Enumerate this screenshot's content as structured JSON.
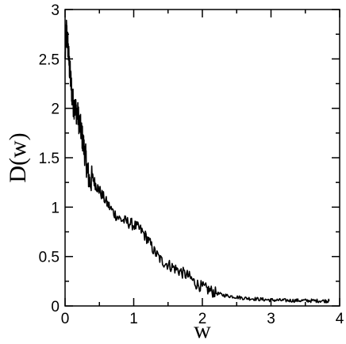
{
  "chart_data": {
    "type": "line",
    "xlabel": "w",
    "ylabel": "D(w)",
    "xlim": [
      0,
      4
    ],
    "ylim": [
      0,
      3
    ],
    "x_ticks": [
      0,
      1,
      2,
      3,
      4
    ],
    "y_ticks": [
      0,
      0.5,
      1,
      1.5,
      2,
      2.5,
      3
    ],
    "x_tick_labels": [
      "0",
      "1",
      "2",
      "3",
      "4"
    ],
    "y_tick_labels": [
      "0",
      "0.5",
      "1",
      "1.5",
      "2",
      "2.5",
      "3"
    ],
    "grid": false,
    "line_color": "#000000",
    "series": [
      {
        "x": [
          0.0,
          0.02,
          0.04,
          0.06,
          0.08,
          0.1,
          0.12,
          0.15,
          0.18,
          0.21,
          0.24,
          0.27,
          0.3,
          0.33,
          0.36,
          0.4,
          0.45,
          0.5,
          0.6,
          0.7,
          0.8,
          0.9,
          1.0,
          1.1,
          1.2,
          1.3,
          1.4,
          1.5,
          1.6,
          1.7,
          1.8,
          1.9,
          2.0,
          2.1,
          2.2,
          2.3,
          2.4,
          2.5,
          2.6,
          2.7,
          2.8,
          2.9,
          3.0,
          3.1,
          3.2,
          3.3,
          3.4,
          3.5,
          3.6,
          3.7,
          3.8,
          3.85
        ],
        "y": [
          2.5,
          2.8,
          2.65,
          2.45,
          2.3,
          2.15,
          2.05,
          2.0,
          1.95,
          1.85,
          1.75,
          1.62,
          1.5,
          1.35,
          1.25,
          1.3,
          1.22,
          1.17,
          1.05,
          0.95,
          0.88,
          0.85,
          0.82,
          0.77,
          0.68,
          0.55,
          0.46,
          0.42,
          0.38,
          0.34,
          0.3,
          0.23,
          0.19,
          0.16,
          0.13,
          0.11,
          0.1,
          0.09,
          0.08,
          0.075,
          0.07,
          0.065,
          0.06,
          0.058,
          0.056,
          0.055,
          0.055,
          0.054,
          0.053,
          0.052,
          0.051,
          0.05
        ]
      }
    ]
  }
}
